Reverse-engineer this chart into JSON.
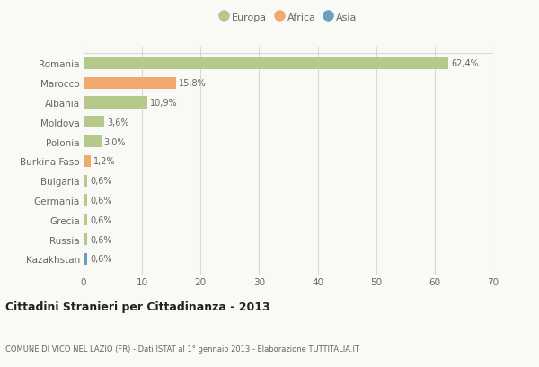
{
  "categories": [
    "Romania",
    "Marocco",
    "Albania",
    "Moldova",
    "Polonia",
    "Burkina Faso",
    "Bulgaria",
    "Germania",
    "Grecia",
    "Russia",
    "Kazakhstan"
  ],
  "values": [
    62.4,
    15.8,
    10.9,
    3.6,
    3.0,
    1.2,
    0.6,
    0.6,
    0.6,
    0.6,
    0.6
  ],
  "labels": [
    "62,4%",
    "15,8%",
    "10,9%",
    "3,6%",
    "3,0%",
    "1,2%",
    "0,6%",
    "0,6%",
    "0,6%",
    "0,6%",
    "0,6%"
  ],
  "colors": [
    "#b5c98a",
    "#f0a96e",
    "#b5c98a",
    "#b5c98a",
    "#b5c98a",
    "#f0a96e",
    "#b5c98a",
    "#b5c98a",
    "#b5c98a",
    "#b5c98a",
    "#6a9fc0"
  ],
  "legend": [
    {
      "label": "Europa",
      "color": "#b5c98a"
    },
    {
      "label": "Africa",
      "color": "#f0a96e"
    },
    {
      "label": "Asia",
      "color": "#6a9fc0"
    }
  ],
  "xlim": [
    0,
    70
  ],
  "xticks": [
    0,
    10,
    20,
    30,
    40,
    50,
    60,
    70
  ],
  "title": "Cittadini Stranieri per Cittadinanza - 2013",
  "subtitle": "COMUNE DI VICO NEL LAZIO (FR) - Dati ISTAT al 1° gennaio 2013 - Elaborazione TUTTITALIA.IT",
  "background_color": "#f9f9f6",
  "grid_color": "#d8d8d8",
  "text_color": "#666666",
  "title_color": "#222222",
  "bar_height": 0.6
}
